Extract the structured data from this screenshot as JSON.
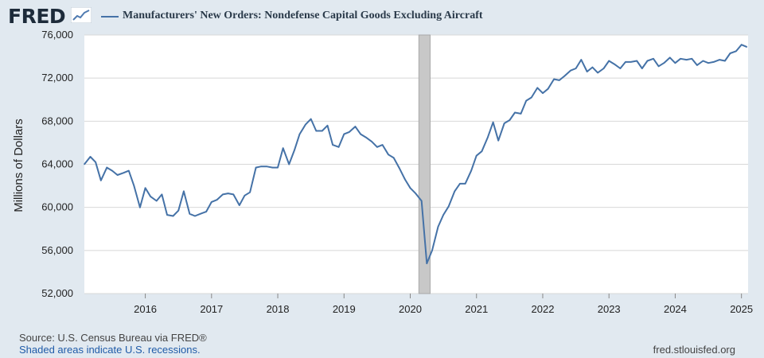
{
  "header": {
    "logo_text": "FRED",
    "logo_icon": "line-chart-icon",
    "title": "Manufacturers' New Orders: Nondefense Capital Goods Excluding Aircraft"
  },
  "footer": {
    "source": "Source: U.S. Census Bureau via FRED®",
    "recession_note": "Shaded areas indicate U.S. recessions.",
    "site": "fred.stlouisfed.org"
  },
  "colors": {
    "series": "#4572a7",
    "recession": "#c8c8c8",
    "grid": "#d8d8d8",
    "background": "#e1e9f0",
    "plot": "#ffffff"
  },
  "chart_data": {
    "type": "line",
    "title": "Manufacturers' New Orders: Nondefense Capital Goods Excluding Aircraft",
    "xlabel": "",
    "ylabel": "Millions of Dollars",
    "xlim": [
      2015.08,
      2025.1
    ],
    "ylim": [
      52000,
      76000
    ],
    "grid": true,
    "legend_position": "top",
    "x_ticks": [
      2016,
      2017,
      2018,
      2019,
      2020,
      2021,
      2022,
      2023,
      2024,
      2025
    ],
    "x_tick_labels": [
      "2016",
      "2017",
      "2018",
      "2019",
      "2020",
      "2021",
      "2022",
      "2023",
      "2024",
      "2025"
    ],
    "y_ticks": [
      52000,
      56000,
      60000,
      64000,
      68000,
      72000,
      76000
    ],
    "y_tick_labels": [
      "52,000",
      "56,000",
      "60,000",
      "64,000",
      "68,000",
      "72,000",
      "76,000"
    ],
    "recessions": [
      {
        "start": 2020.13,
        "end": 2020.3
      }
    ],
    "series": [
      {
        "name": "Manufacturers' New Orders: Nondefense Capital Goods Excluding Aircraft",
        "x": [
          2015.08,
          2015.17,
          2015.25,
          2015.33,
          2015.42,
          2015.5,
          2015.58,
          2015.67,
          2015.75,
          2015.83,
          2015.92,
          2016.0,
          2016.08,
          2016.17,
          2016.25,
          2016.33,
          2016.42,
          2016.5,
          2016.58,
          2016.67,
          2016.75,
          2016.83,
          2016.92,
          2017.0,
          2017.08,
          2017.17,
          2017.25,
          2017.33,
          2017.42,
          2017.5,
          2017.58,
          2017.67,
          2017.75,
          2017.83,
          2017.92,
          2018.0,
          2018.08,
          2018.17,
          2018.25,
          2018.33,
          2018.42,
          2018.5,
          2018.58,
          2018.67,
          2018.75,
          2018.83,
          2018.92,
          2019.0,
          2019.08,
          2019.17,
          2019.25,
          2019.33,
          2019.42,
          2019.5,
          2019.58,
          2019.67,
          2019.75,
          2019.83,
          2019.92,
          2020.0,
          2020.08,
          2020.17,
          2020.25,
          2020.33,
          2020.42,
          2020.5,
          2020.58,
          2020.67,
          2020.75,
          2020.83,
          2020.92,
          2021.0,
          2021.08,
          2021.17,
          2021.25,
          2021.33,
          2021.42,
          2021.5,
          2021.58,
          2021.67,
          2021.75,
          2021.83,
          2021.92,
          2022.0,
          2022.08,
          2022.17,
          2022.25,
          2022.33,
          2022.42,
          2022.5,
          2022.58,
          2022.67,
          2022.75,
          2022.83,
          2022.92,
          2023.0,
          2023.08,
          2023.17,
          2023.25,
          2023.33,
          2023.42,
          2023.5,
          2023.58,
          2023.67,
          2023.75,
          2023.83,
          2023.92,
          2024.0,
          2024.08,
          2024.17,
          2024.25,
          2024.33,
          2024.42,
          2024.5,
          2024.58,
          2024.67,
          2024.75,
          2024.83,
          2024.92,
          2025.0,
          2025.08
        ],
        "values": [
          64000,
          64700,
          64200,
          62500,
          63700,
          63400,
          63000,
          63200,
          63400,
          62000,
          60000,
          61800,
          61000,
          60600,
          61200,
          59300,
          59200,
          59700,
          61500,
          59400,
          59200,
          59400,
          59600,
          60500,
          60700,
          61200,
          61300,
          61200,
          60200,
          61100,
          61400,
          63700,
          63800,
          63800,
          63700,
          63700,
          65500,
          64000,
          65300,
          66800,
          67700,
          68200,
          67100,
          67100,
          67600,
          65800,
          65600,
          66800,
          67000,
          67500,
          66800,
          66500,
          66100,
          65600,
          65800,
          64900,
          64600,
          63700,
          62600,
          61800,
          61300,
          60600,
          54800,
          56000,
          58200,
          59300,
          60100,
          61500,
          62200,
          62200,
          63400,
          64800,
          65200,
          66500,
          67900,
          66200,
          67800,
          68100,
          68800,
          68700,
          69900,
          70200,
          71100,
          70600,
          71000,
          71900,
          71800,
          72200,
          72700,
          72900,
          73700,
          72600,
          73000,
          72500,
          72900,
          73600,
          73300,
          72900,
          73500,
          73500,
          73600,
          72900,
          73600,
          73800,
          73100,
          73400,
          73900,
          73400,
          73800,
          73700,
          73800,
          73200,
          73600,
          73400,
          73500,
          73700,
          73600,
          74300,
          74500,
          75100,
          74900
        ]
      }
    ]
  }
}
